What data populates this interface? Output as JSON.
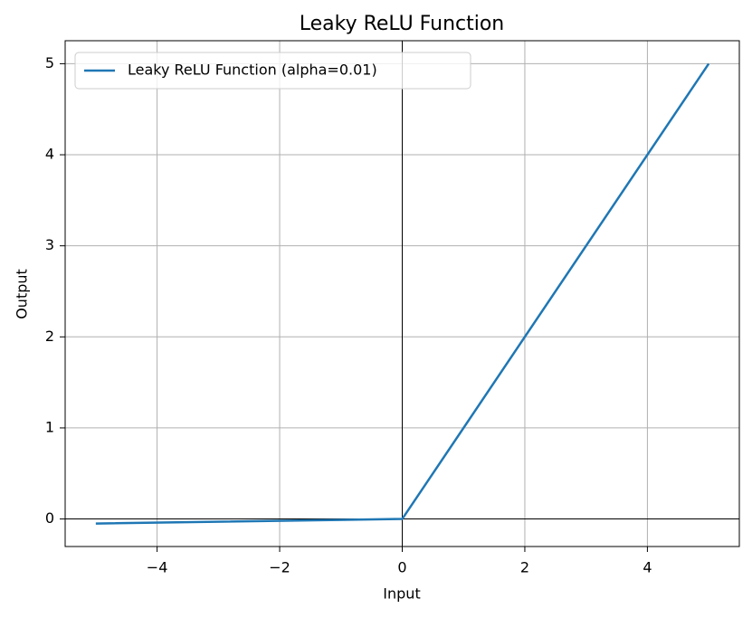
{
  "chart_data": {
    "type": "line",
    "title": "Leaky ReLU Function",
    "x_label": "Input",
    "y_label": "Output",
    "x": [
      -5,
      0,
      5
    ],
    "series": [
      {
        "name": "Leaky ReLU Function (alpha=0.01)",
        "color": "#1f77b4",
        "values": [
          -0.05,
          0,
          5
        ]
      }
    ],
    "xlim": [
      -5.5,
      5.5
    ],
    "ylim": [
      -0.3025,
      5.2525
    ],
    "xticks": [
      {
        "value": -4,
        "label": "−4"
      },
      {
        "value": -2,
        "label": "−2"
      },
      0,
      2,
      4
    ],
    "yticks": [
      0,
      1,
      2,
      3,
      4,
      5
    ],
    "grid": true,
    "legend": "upper-left",
    "axhline": 0,
    "axvline": 0
  }
}
